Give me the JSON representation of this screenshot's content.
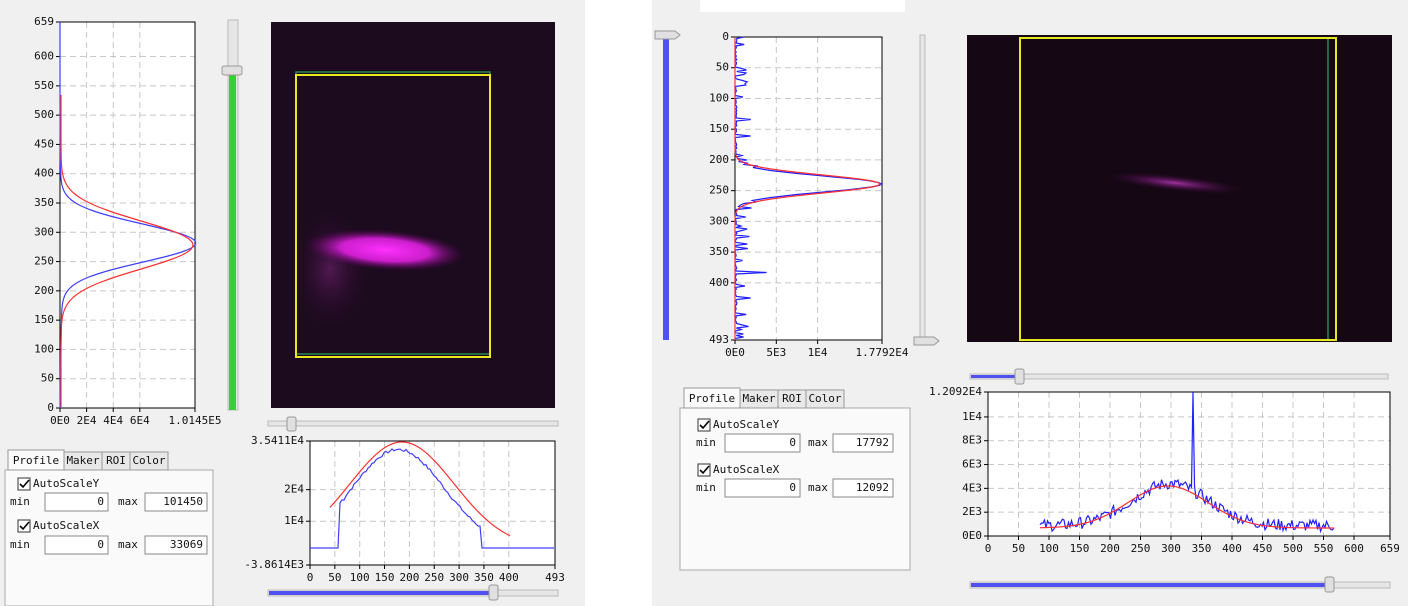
{
  "left": {
    "vertical_profile": {
      "ylim": [
        0,
        659
      ],
      "yticks": [
        0,
        50,
        100,
        150,
        200,
        250,
        300,
        350,
        400,
        450,
        500,
        550,
        600,
        659
      ],
      "xlim": [
        0,
        101450
      ],
      "xticks": [
        {
          "value": 0,
          "label": "0E0"
        },
        {
          "value": 20000,
          "label": "2E4"
        },
        {
          "value": 40000,
          "label": "4E4"
        },
        {
          "value": 60000,
          "label": "6E4"
        },
        {
          "value": 101450,
          "label": "1.0145E5"
        }
      ]
    },
    "horizontal_profile": {
      "ylim": [
        -3861.4,
        35411
      ],
      "yticks": [
        {
          "value": 35411,
          "label": "3.5411E4"
        },
        {
          "value": 20000,
          "label": "2E4"
        },
        {
          "value": 10000,
          "label": "1E4"
        },
        {
          "value": -3861.4,
          "label": "-3.8614E3"
        }
      ],
      "xlim": [
        0,
        493
      ],
      "xticks": [
        0,
        50,
        100,
        150,
        200,
        250,
        300,
        350,
        400,
        493
      ]
    },
    "controls": {
      "tabs": [
        "Profile",
        "Maker",
        "ROI",
        "Color"
      ],
      "auto_scale_y": {
        "label": "AutoScaleY",
        "min_label": "min",
        "min": 0,
        "max_label": "max",
        "max": 101450
      },
      "auto_scale_x": {
        "label": "AutoScaleX",
        "min_label": "min",
        "min": 0,
        "max_label": "max",
        "max": 33069
      }
    }
  },
  "right": {
    "vertical_profile": {
      "ylim": [
        0,
        493
      ],
      "yticks": [
        0,
        50,
        100,
        150,
        200,
        250,
        300,
        350,
        400,
        493
      ],
      "xlim": [
        0,
        17792
      ],
      "xticks": [
        {
          "value": 0,
          "label": "0E0"
        },
        {
          "value": 5000,
          "label": "5E3"
        },
        {
          "value": 10000,
          "label": "1E4"
        },
        {
          "value": 17792,
          "label": "1.7792E4"
        }
      ]
    },
    "horizontal_profile": {
      "ylim": [
        0,
        12092
      ],
      "yticks": [
        {
          "value": 12092,
          "label": "1.2092E4"
        },
        {
          "value": 10000,
          "label": "1E4"
        },
        {
          "value": 8000,
          "label": "8E3"
        },
        {
          "value": 6000,
          "label": "6E3"
        },
        {
          "value": 4000,
          "label": "4E3"
        },
        {
          "value": 2000,
          "label": "2E3"
        },
        {
          "value": 0,
          "label": "0E0"
        }
      ],
      "xlim": [
        0,
        659
      ],
      "xticks": [
        0,
        50,
        100,
        150,
        200,
        250,
        300,
        350,
        400,
        450,
        500,
        550,
        600,
        659
      ]
    },
    "controls": {
      "tabs": [
        "Profile",
        "Maker",
        "ROI",
        "Color"
      ],
      "auto_scale_y": {
        "label": "AutoScaleY",
        "min_label": "min",
        "min": 0,
        "max_label": "max",
        "max": 17792
      },
      "auto_scale_x": {
        "label": "AutoScaleX",
        "min_label": "min",
        "min": 0,
        "max_label": "max",
        "max": 12092
      }
    }
  }
}
